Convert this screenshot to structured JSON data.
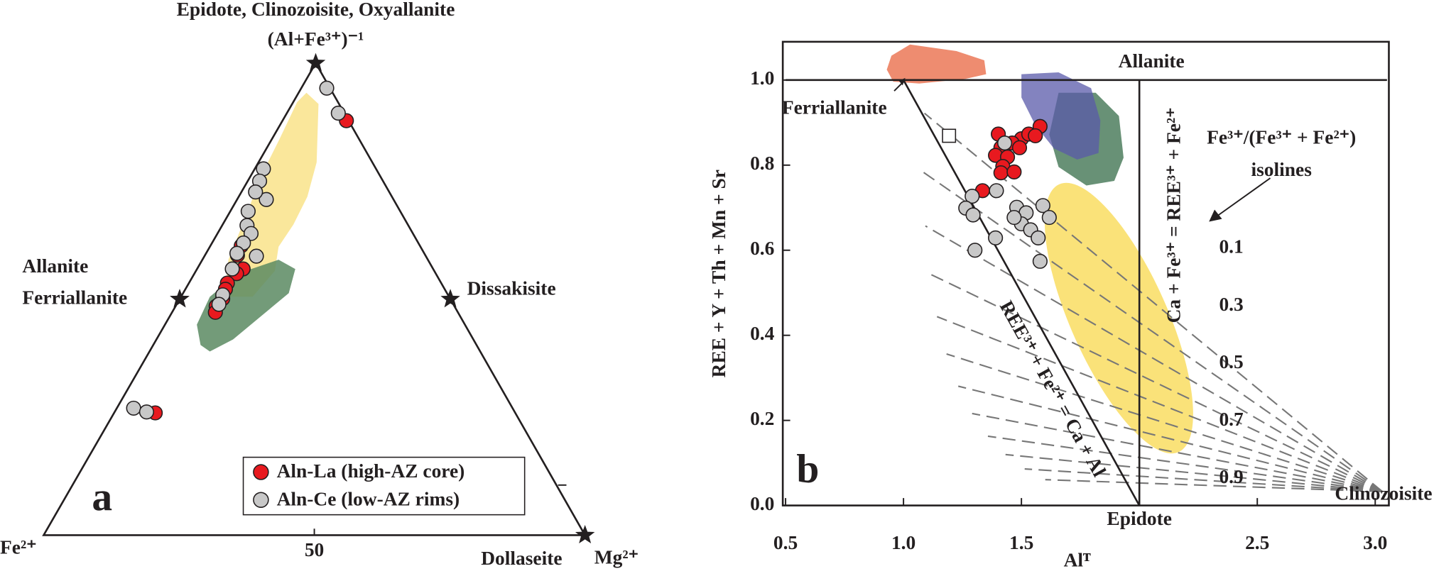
{
  "chart_data": [
    {
      "type": "ternary",
      "panel": "a",
      "vertex_labels": {
        "top": "(Al+Fe³⁺)⁻¹",
        "left": "Fe²⁺",
        "right": "Mg²⁺"
      },
      "bottom_ticks": [
        50
      ],
      "end_members": [
        {
          "name": "Epidote, Clinozoisite, Oxyallanite",
          "top": 1,
          "right": 0
        },
        {
          "name": "Allanite",
          "top": 0.5,
          "right": 0
        },
        {
          "name": "Ferriallanite",
          "top": 0.5,
          "right": 0
        },
        {
          "name": "Dissakisite",
          "top": 0.5,
          "right": 0.5
        },
        {
          "name": "Dollaseite",
          "top": 0,
          "right": 1
        }
      ],
      "series": [
        {
          "name": "Aln-La (high-AZ core)",
          "color": "#e8191f",
          "top": [
            0.878,
            0.613,
            0.593,
            0.564,
            0.554,
            0.534,
            0.521,
            0.501,
            0.485,
            0.472,
            0.259
          ],
          "right": [
            0.118,
            0.057,
            0.06,
            0.085,
            0.078,
            0.071,
            0.074,
            0.079,
            0.075,
            0.08,
            0.076
          ]
        },
        {
          "name": "Aln-Ce (low-AZ rims)",
          "color": "#c8c8c8",
          "top": [
            0.947,
            0.894,
            0.776,
            0.75,
            0.711,
            0.727,
            0.686,
            0.656,
            0.639,
            0.619,
            0.591,
            0.597,
            0.564,
            0.509,
            0.489,
            0.269,
            0.261
          ],
          "right": [
            0.047,
            0.095,
            0.016,
            0.022,
            0.054,
            0.026,
            0.033,
            0.046,
            0.062,
            0.058,
            0.096,
            0.057,
            0.065,
            0.075,
            0.078,
            0.031,
            0.059
          ]
        }
      ]
    },
    {
      "type": "scatter",
      "panel": "b",
      "x_label": "Alᵀ",
      "y_label": "REE + Y + Th + Mn + Sr",
      "xlim": [
        0.5,
        3.05
      ],
      "ylim": [
        0,
        1.09
      ],
      "xticks": [
        0.5,
        {
          "value": 1,
          "label": "1.0"
        },
        1.5,
        {
          "value": 2,
          "label": "Epidote"
        },
        2.5,
        {
          "value": 3,
          "label": "3.0"
        }
      ],
      "yticks": [
        {
          "value": 0,
          "label": "0.0"
        },
        0.2,
        0.4,
        0.6,
        0.8,
        {
          "value": 1,
          "label": "1.0"
        }
      ],
      "reference_lines": [
        {
          "x": [
            0.5,
            3.05
          ],
          "y": [
            1,
            1
          ]
        },
        {
          "x": [
            2,
            2
          ],
          "y": [
            0,
            1
          ]
        },
        {
          "x": [
            1,
            2
          ],
          "y": [
            1,
            0
          ]
        }
      ],
      "annotations": [
        "Allanite",
        "Ferriallanite",
        "REE³⁺ + Fe²⁺ = Ca + Al",
        "Ca + Fe³⁺ = REE³⁺ + Fe²⁺",
        "Fe³⁺/(Fe³⁺ + Fe²⁺)",
        "isolines",
        "Clinozoisite"
      ],
      "isoline_labels": [
        0.1,
        0.3,
        0.5,
        0.7,
        0.9
      ],
      "series": [
        {
          "color": "#e8191f",
          "x": [
            1.579,
            1.402,
            1.5,
            1.531,
            1.461,
            1.413,
            1.39,
            1.441,
            1.492,
            1.421,
            1.413,
            1.469,
            1.335,
            1.559
          ],
          "values": [
            0.891,
            0.873,
            0.862,
            0.873,
            0.852,
            0.841,
            0.823,
            0.819,
            0.841,
            0.797,
            0.782,
            0.784,
            0.74,
            0.869
          ]
        },
        {
          "color": "#c8c8c8",
          "x": [
            1.429,
            1.291,
            1.394,
            1.264,
            1.295,
            1.48,
            1.591,
            1.52,
            1.618,
            1.5,
            1.539,
            1.571,
            1.39,
            1.303,
            1.579,
            1.469
          ],
          "values": [
            0.852,
            0.727,
            0.74,
            0.699,
            0.683,
            0.701,
            0.705,
            0.688,
            0.677,
            0.662,
            0.648,
            0.629,
            0.629,
            0.6,
            0.574,
            0.677
          ]
        },
        {
          "color": "#ffffff",
          "marker": "square",
          "x": [
            1.193
          ],
          "values": [
            0.869
          ]
        }
      ]
    }
  ]
}
